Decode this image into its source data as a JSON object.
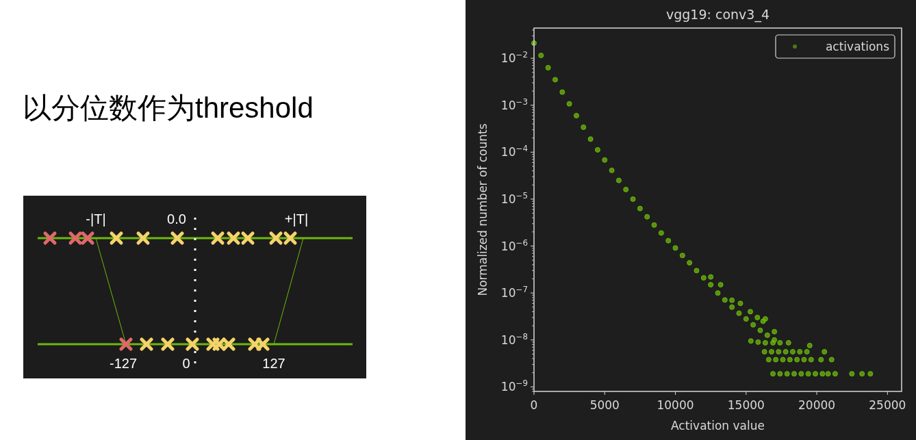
{
  "chart_data": [
    {
      "type": "other",
      "title": "以分位数作为threshold",
      "annotations": [
        "-|T|",
        "0.0",
        "+|T|",
        "-127",
        "0",
        "127"
      ]
    },
    {
      "type": "scatter",
      "title": "vgg19: conv3_4",
      "xlabel": "Activation value",
      "ylabel": "Normalized number of counts",
      "log": "y",
      "xlim": [
        0,
        26000
      ],
      "ylim": [
        8e-10,
        0.044
      ],
      "xticks": [
        0,
        5000,
        10000,
        15000,
        20000,
        25000
      ],
      "yticks": [
        {
          "value": 1e-09,
          "label": "10$^{−9}$"
        },
        {
          "value": 1e-08,
          "label": "10$^{−8}$"
        },
        {
          "value": 1e-07,
          "label": "10$^{−7}$"
        },
        {
          "value": 1e-06,
          "label": "10$^{−6}$"
        },
        {
          "value": 1e-05,
          "label": "10$^{−5}$"
        },
        {
          "value": 0.0001,
          "label": "10$^{−4}$"
        },
        {
          "value": 0.001,
          "label": "10$^{−3}$"
        },
        {
          "value": 0.01,
          "label": "10$^{−2}$"
        }
      ],
      "grid": false,
      "legend": "top right",
      "marker": "circle",
      "series": [
        {
          "name": "activations",
          "color": "#6cb80c",
          "x": [
            0,
            500,
            1000,
            1500,
            2000,
            2500,
            3000,
            3500,
            4000,
            4500,
            5000,
            5500,
            6000,
            6500,
            7000,
            7500,
            8000,
            8500,
            9000,
            9500,
            10000,
            10500,
            11000,
            11500,
            12000,
            12500,
            13000,
            13500,
            14000,
            14500,
            15000,
            15500,
            16000,
            16500,
            17000,
            12500,
            13200,
            14000,
            14600,
            15300,
            15800,
            16200,
            17000,
            15340,
            15850,
            16360,
            19500,
            20540,
            21050,
            16360,
            16900,
            17400,
            18000,
            16300,
            16800,
            17300,
            17800,
            18300,
            18800,
            19300,
            16600,
            17100,
            17600,
            18100,
            18600,
            19100,
            19600,
            20300,
            16900,
            17400,
            17900,
            18400,
            18900,
            19400,
            19900,
            20400,
            20800,
            21300,
            22480,
            23200,
            23790
          ],
          "values": [
            0.021,
            0.0115,
            0.0063,
            0.0035,
            0.0019,
            0.00107,
            0.0006,
            0.00034,
            0.00019,
            0.000112,
            6.8e-05,
            4.1e-05,
            2.5e-05,
            1.6e-05,
            1e-05,
            6.3e-06,
            4.2e-06,
            2.8e-06,
            1.9e-06,
            1.3e-06,
            9.1e-07,
            6.3e-07,
            4.4e-07,
            3e-07,
            2.1e-07,
            1.5e-07,
            1e-07,
            7.1e-08,
            5e-08,
            3.7e-08,
            2.8e-08,
            2.1e-08,
            1.6e-08,
            1.26e-08,
            1e-08,
            2.2e-07,
            1.5e-07,
            7e-08,
            6e-08,
            4e-08,
            3e-08,
            2.5e-08,
            1.5e-08,
            9.5e-09,
            9e-09,
            2.8e-08,
            7.6e-09,
            5.6e-09,
            3.8e-09,
            8.7e-09,
            8.7e-09,
            8.7e-09,
            8.7e-09,
            5.6e-09,
            5.6e-09,
            5.6e-09,
            5.6e-09,
            5.6e-09,
            5.6e-09,
            5.6e-09,
            3.8e-09,
            3.8e-09,
            3.8e-09,
            3.8e-09,
            3.8e-09,
            3.8e-09,
            3.8e-09,
            3.8e-09,
            1.9e-09,
            1.9e-09,
            1.9e-09,
            1.9e-09,
            1.9e-09,
            1.9e-09,
            1.9e-09,
            1.9e-09,
            1.9e-09,
            1.9e-09,
            1.9e-09,
            1.9e-09,
            1.9e-09
          ]
        }
      ]
    }
  ]
}
